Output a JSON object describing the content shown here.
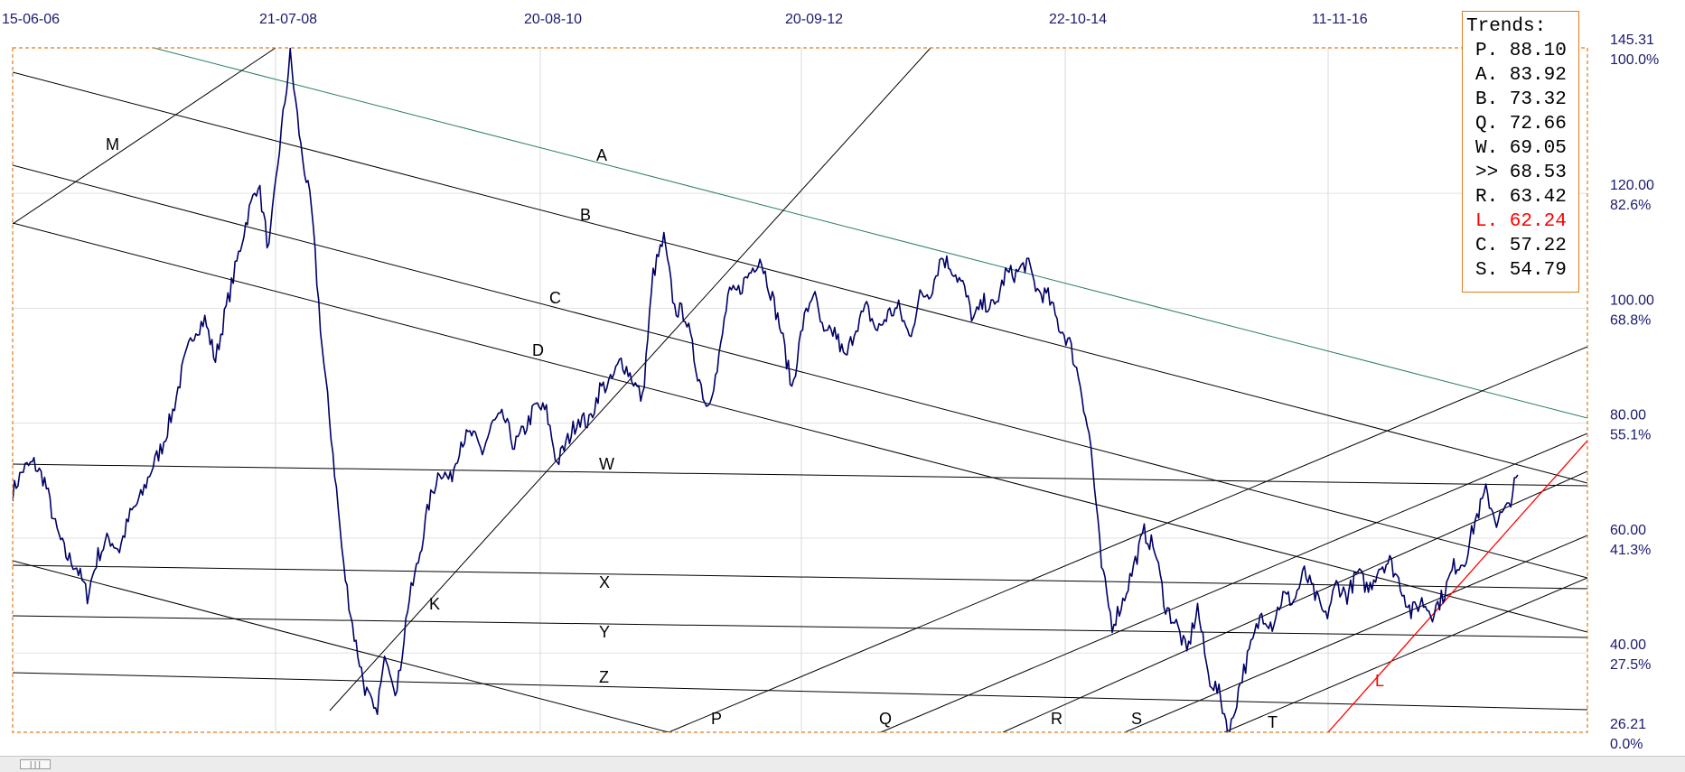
{
  "chart_data": {
    "type": "line",
    "x_tick_labels": [
      "15-06-06",
      "21-07-08",
      "20-08-10",
      "20-09-12",
      "22-10-14",
      "11-11-16"
    ],
    "price_labels": [
      {
        "price": "145.31",
        "pct": "100.0%"
      },
      {
        "price": "120.00",
        "pct": "82.6%"
      },
      {
        "price": "100.00",
        "pct": "68.8%"
      },
      {
        "price": "80.00",
        "pct": "55.1%"
      },
      {
        "price": "60.00",
        "pct": "41.3%"
      },
      {
        "price": "40.00",
        "pct": "27.5%"
      },
      {
        "price": "26.21",
        "pct": "0.0%"
      }
    ],
    "ylim": [
      26.21,
      145.31
    ],
    "series": [
      {
        "color": "#000066",
        "values": [
          68,
          72,
          73,
          70,
          62,
          57,
          55,
          50,
          57,
          60,
          58,
          64,
          67,
          72,
          76,
          82,
          90,
          96,
          98,
          91,
          100,
          108,
          116,
          122,
          110,
          128,
          144,
          128,
          117,
          93,
          75,
          55,
          43,
          34,
          29,
          40,
          33,
          48,
          56,
          66,
          72,
          70,
          77,
          78,
          75,
          80,
          81,
          76,
          79,
          83,
          82,
          73,
          77,
          81,
          80,
          86,
          87,
          91,
          88,
          84,
          106,
          112,
          100,
          99,
          90,
          83,
          89,
          102,
          103,
          106,
          109,
          103,
          96,
          86,
          97,
          103,
          95,
          96,
          91,
          97,
          100,
          96,
          99,
          100,
          95,
          102,
          103,
          109,
          107,
          104,
          98,
          101,
          100,
          106,
          106,
          108,
          103,
          102,
          97,
          94,
          87,
          76,
          55,
          45,
          49,
          55,
          61,
          58,
          48,
          45,
          40,
          48,
          36,
          33,
          26,
          35,
          41,
          47,
          45,
          50,
          49,
          54,
          50,
          46,
          52,
          50,
          54,
          51,
          55,
          56,
          52,
          47,
          49,
          47,
          50,
          55,
          56,
          63,
          68,
          63,
          65,
          71
        ]
      }
    ],
    "trend_lines": [
      {
        "label": "A",
        "color": "#2b7d6e"
      },
      {
        "label": "B",
        "color": "#000000"
      },
      {
        "label": "C",
        "color": "#000000"
      },
      {
        "label": "D",
        "color": "#000000"
      },
      {
        "label": "W",
        "color": "#000000"
      },
      {
        "label": "X",
        "color": "#000000"
      },
      {
        "label": "Y",
        "color": "#000000"
      },
      {
        "label": "Z",
        "color": "#000000"
      },
      {
        "label": "M",
        "color": "#000000"
      },
      {
        "label": "K",
        "color": "#000000"
      },
      {
        "label": "P",
        "color": "#000000"
      },
      {
        "label": "Q",
        "color": "#000000"
      },
      {
        "label": "R",
        "color": "#000000"
      },
      {
        "label": "S",
        "color": "#000000"
      },
      {
        "label": "T",
        "color": "#000000"
      },
      {
        "label": "L",
        "color": "#ff0000"
      }
    ],
    "grid": true,
    "frame_color": "#e07b1a"
  },
  "trends_panel": {
    "title": "Trends:",
    "rows": [
      {
        "key": "P.",
        "value": "88.10",
        "color": "#000000"
      },
      {
        "key": "A.",
        "value": "83.92",
        "color": "#000000"
      },
      {
        "key": "B.",
        "value": "73.32",
        "color": "#000000"
      },
      {
        "key": "Q.",
        "value": "72.66",
        "color": "#000000"
      },
      {
        "key": "W.",
        "value": "69.05",
        "color": "#000000"
      },
      {
        "key": ">>",
        "value": "68.53",
        "color": "#000000"
      },
      {
        "key": "R.",
        "value": "63.42",
        "color": "#000000"
      },
      {
        "key": "L.",
        "value": "62.24",
        "color": "#ff0000"
      },
      {
        "key": "C.",
        "value": "57.22",
        "color": "#000000"
      },
      {
        "key": "S.",
        "value": "54.79",
        "color": "#000000"
      }
    ]
  },
  "scrollbar": {
    "thumb_icon": "grip-icon",
    "thumb_glyph": "|||"
  }
}
